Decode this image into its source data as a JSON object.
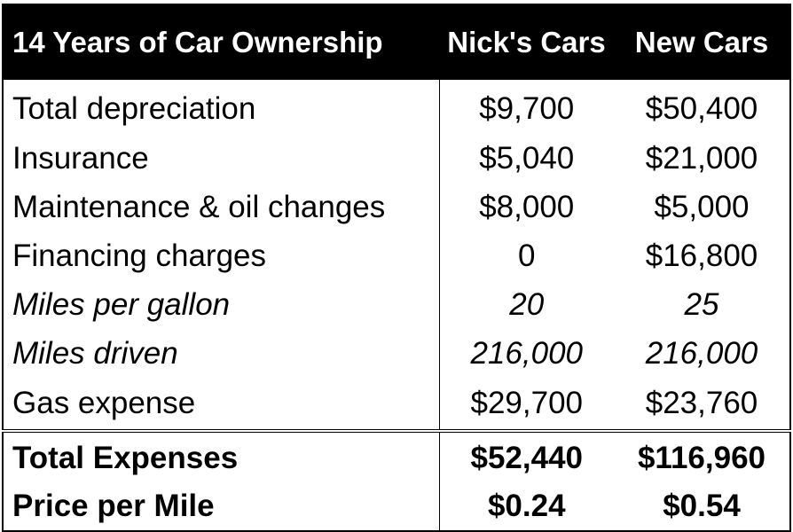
{
  "table": {
    "header": {
      "title": "14 Years of Car Ownership",
      "col_nick": "Nick's Cars",
      "col_new": "New Cars"
    },
    "rows": [
      {
        "label": "Total depreciation",
        "nick": "$9,700",
        "new": "$50,400"
      },
      {
        "label": "Insurance",
        "nick": "$5,040",
        "new": "$21,000"
      },
      {
        "label": "Maintenance & oil changes",
        "nick": "$8,000",
        "new": "$5,000"
      },
      {
        "label": "Financing charges",
        "nick": "0",
        "new": "$16,800"
      },
      {
        "label": "Miles per gallon",
        "nick": "20",
        "new": "25"
      },
      {
        "label": "Miles driven",
        "nick": "216,000",
        "new": "216,000"
      },
      {
        "label": "Gas expense",
        "nick": "$29,700",
        "new": "$23,760"
      }
    ],
    "totals": [
      {
        "label": "Total Expenses",
        "nick": "$52,440",
        "new": "$116,960"
      },
      {
        "label": "Price per Mile",
        "nick": "$0.24",
        "new": "$0.54"
      }
    ]
  },
  "colors": {
    "header_background": "#000000",
    "header_text": "#ffffff",
    "body_text": "#000000",
    "background": "#ffffff"
  }
}
